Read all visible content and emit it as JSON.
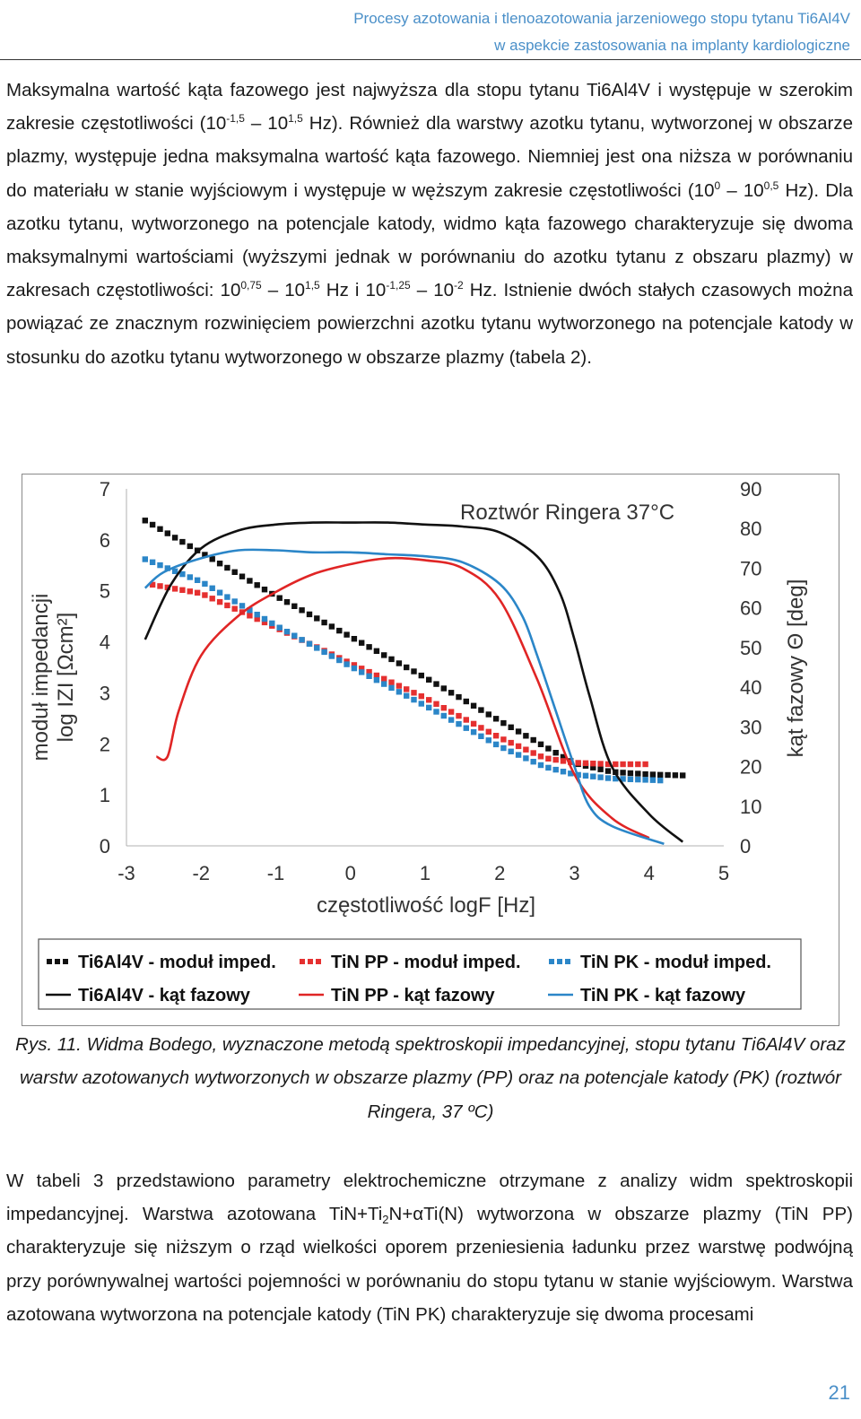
{
  "header": {
    "line1": "Procesy azotowania i tlenoazotowania jarzeniowego stopu tytanu Ti6Al4V",
    "line2": "w aspekcie zastosowania na implanty kardiologiczne"
  },
  "paragraph1": {
    "s1": "Maksymalna wartość kąta fazowego jest najwyższa dla stopu tytanu Ti6Al4V i występuje w szerokim zakresie częstotliwości (10",
    "s1_sup1": "-1,5",
    "s1_mid": " – 10",
    "s1_sup2": "1,5",
    "s2": " Hz). Również dla warstwy azotku tytanu, wytworzonej w obszarze plazmy, występuje jedna maksymalna wartość kąta fazowego. Niemniej jest ona niższa w porównaniu do materiału w stanie wyjściowym i występuje w węższym zakresie częstotliwości (10",
    "s2_sup1": "0",
    "s2_mid": " – 10",
    "s2_sup2": "0,5",
    "s3": " Hz). Dla azotku tytanu, wytworzonego na potencjale katody, widmo kąta fazowego charakteryzuje się dwoma maksymalnymi wartościami (wyższymi jednak w porównaniu do azotku tytanu z obszaru plazmy) w zakresach częstotliwości: 10",
    "s3_sup1": "0,75",
    "s3_mid1": " – 10",
    "s3_sup2": "1,5",
    "s3_mid2": " Hz i 10",
    "s3_sup3": "-1,25",
    "s3_mid3": " – 10",
    "s3_sup4": "-2",
    "s4": " Hz. Istnienie dwóch stałych czasowych można powiązać ze znacznym rozwinięciem powierzchni azotku tytanu wytworzonego na potencjale katody w stosunku do azotku tytanu wytworzonego w obszarze plazmy (tabela 2)."
  },
  "caption": "Rys. 11. Widma Bodego, wyznaczone metodą spektroskopii impedancyjnej, stopu tytanu Ti6Al4V oraz warstw azotowanych wytworzonych w obszarze plazmy (PP) oraz na potencjale katody (PK) (roztwór Ringera, 37 ºC)",
  "paragraph2": {
    "s1": "W tabeli 3 przedstawiono parametry elektrochemiczne otrzymane z analizy widm spektroskopii impedancyjnej. Warstwa azotowana TiN+Ti",
    "sub": "2",
    "s2": "N+αTi(N) wytworzona w obszarze plazmy (TiN PP) charakteryzuje się niższym o rząd wielkości oporem przeniesienia ładunku przez warstwę podwójną przy porównywalnej wartości pojemności w porównaniu do stopu tytanu w stanie wyjściowym. Warstwa azotowana wytworzona na potencjale katody (TiN PK) charakteryzuje się dwoma procesami"
  },
  "page_number": "21",
  "chart_data": {
    "type": "line",
    "title": "Roztwór Ringera 37°C",
    "xlabel": "częstotliwość logF [Hz]",
    "ylabel_left_line1": "moduł impedancji",
    "ylabel_left_line2": "log IZI [Ωcm²]",
    "ylabel_right": "kąt fazowy Θ [deg]",
    "xlim": [
      -3,
      5
    ],
    "ylim_left": [
      0,
      7
    ],
    "ylim_right": [
      0,
      90
    ],
    "x_ticks": [
      "-3",
      "-2",
      "-1",
      "0",
      "1",
      "2",
      "3",
      "4",
      "5"
    ],
    "y_left_ticks": [
      "0",
      "1",
      "2",
      "3",
      "4",
      "5",
      "6",
      "7"
    ],
    "y_right_ticks": [
      "0",
      "10",
      "20",
      "30",
      "40",
      "50",
      "60",
      "70",
      "80",
      "90"
    ],
    "grid": false,
    "legend": "bottom",
    "series": [
      {
        "name": "Ti6Al4V - moduł imped.",
        "axis": "left",
        "style": "markers",
        "color": "#111111",
        "x": [
          -2.75,
          -2.0,
          -1.0,
          0.0,
          1.0,
          2.0,
          2.6,
          3.0,
          3.5,
          4.0,
          4.45
        ],
        "y": [
          6.38,
          5.75,
          4.9,
          4.1,
          3.3,
          2.45,
          1.95,
          1.62,
          1.45,
          1.4,
          1.38
        ]
      },
      {
        "name": "TiN PP - moduł imped.",
        "axis": "left",
        "style": "markers",
        "color": "#e53030",
        "x": [
          -2.65,
          -2.0,
          -1.0,
          0.0,
          1.0,
          2.0,
          2.6,
          3.0,
          3.5,
          4.0
        ],
        "y": [
          5.12,
          4.95,
          4.28,
          3.58,
          2.9,
          2.12,
          1.72,
          1.63,
          1.6,
          1.6
        ]
      },
      {
        "name": "TiN PK - moduł imped.",
        "axis": "left",
        "style": "markers",
        "color": "#2b86c8",
        "x": [
          -2.75,
          -2.0,
          -1.0,
          0.0,
          1.0,
          2.0,
          2.6,
          3.0,
          3.5,
          4.2
        ],
        "y": [
          5.62,
          5.18,
          4.32,
          3.52,
          2.75,
          1.95,
          1.55,
          1.4,
          1.32,
          1.28
        ]
      },
      {
        "name": "Ti6Al4V - kąt fazowy",
        "axis": "right",
        "style": "line",
        "color": "#111111",
        "x": [
          -2.75,
          -2.4,
          -2.0,
          -1.5,
          -1.0,
          -0.5,
          0.0,
          0.5,
          1.0,
          1.5,
          2.0,
          2.5,
          2.8,
          3.0,
          3.2,
          3.5,
          4.0,
          4.45
        ],
        "y": [
          52,
          66,
          75,
          79.5,
          81,
          81.5,
          81.5,
          81.5,
          81,
          80.5,
          79,
          73,
          64,
          52,
          38,
          20,
          8,
          1
        ]
      },
      {
        "name": "TiN PP - kąt fazowy",
        "axis": "right",
        "style": "line",
        "color": "#e02525",
        "x": [
          -2.6,
          -2.45,
          -2.3,
          -2.0,
          -1.5,
          -1.0,
          -0.5,
          0.0,
          0.5,
          1.0,
          1.5,
          2.0,
          2.5,
          3.0,
          3.5,
          4.0
        ],
        "y": [
          22.5,
          22.5,
          34,
          48,
          58,
          64,
          68.5,
          71,
          72.5,
          72,
          70,
          62,
          42,
          18,
          7,
          2
        ]
      },
      {
        "name": "TiN PK - kąt fazowy",
        "axis": "right",
        "style": "line",
        "color": "#2b86c8",
        "x": [
          -2.75,
          -2.5,
          -2.0,
          -1.5,
          -1.0,
          -0.5,
          0.0,
          0.5,
          1.0,
          1.5,
          2.0,
          2.3,
          2.5,
          2.75,
          3.0,
          3.2,
          3.5,
          4.2
        ],
        "y": [
          65,
          69,
          72.5,
          74.5,
          74.5,
          74,
          74,
          73.5,
          73,
          71.5,
          66,
          58,
          48,
          34,
          20,
          10,
          5,
          0.5
        ]
      }
    ]
  }
}
